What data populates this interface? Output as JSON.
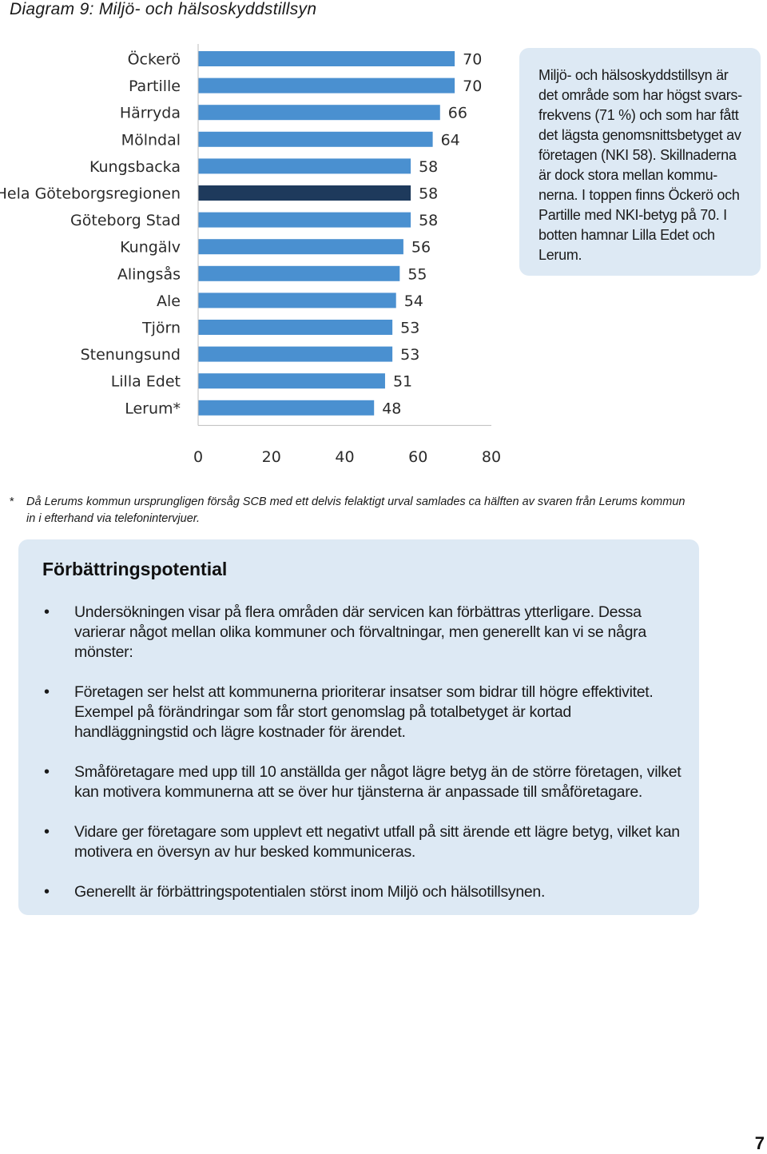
{
  "title": "Diagram 9: Miljö- och hälsoskyddstillsyn",
  "chart_data": {
    "type": "bar",
    "orientation": "horizontal",
    "categories": [
      "Öckerö",
      "Partille",
      "Härryda",
      "Mölndal",
      "Kungsbacka",
      "Hela Göteborgsregionen",
      "Göteborg Stad",
      "Kungälv",
      "Alingsås",
      "Ale",
      "Tjörn",
      "Stenungsund",
      "Lilla Edet",
      "Lerum*"
    ],
    "values": [
      70,
      70,
      66,
      64,
      58,
      58,
      58,
      56,
      55,
      54,
      53,
      53,
      51,
      48
    ],
    "highlight_index": 5,
    "xlim": [
      0,
      80
    ],
    "xticks": [
      "0",
      "20",
      "40",
      "60",
      "80"
    ],
    "bar_color": "#4a90d0",
    "highlight_color": "#1e3a5c",
    "grid": false
  },
  "side_box": {
    "text": "Miljö- och hälsoskyddstillsyn är det område som har högst svars-frekvens (71 %) och som har fått det lägsta genomsnittsbetyget av företagen (NKI 58). Skillnaderna är dock stora mellan kommu-nerna. I toppen finns Öckerö och Partille med NKI-betyg på 70. I botten hamnar Lilla Edet och Lerum."
  },
  "footnote": {
    "marker": "*",
    "text": "Då Lerums kommun ursprungligen försåg SCB med ett delvis felaktigt urval samlades ca hälften av svaren från Lerums kommun in i efterhand via telefonintervjuer."
  },
  "potential": {
    "heading": "Förbättringspotential",
    "bullet": "•",
    "items": [
      "Undersökningen visar på flera områden där servicen kan förbättras ytterligare. Dessa varierar något mellan olika kommuner och förvaltningar, men generellt kan vi se några mönster:",
      "Företagen ser helst att kommunerna prioriterar insatser som bidrar till högre effektivitet. Exempel på förändringar som får stort genomslag på totalbetyget är kortad handläggningstid och lägre kostnader för ärendet.",
      "Småföretagare med upp till 10 anställda ger något lägre betyg än de större företagen, vilket kan motivera kommunerna att se över hur tjänsterna är anpassade till småföretagare.",
      "Vidare ger företagare som upplevt ett negativt utfall på sitt ärende ett lägre betyg, vilket kan motivera en översyn av hur besked kommuniceras.",
      "Generellt är förbättringspotentialen störst inom Miljö och hälsotillsynen."
    ]
  },
  "page_number": "7"
}
